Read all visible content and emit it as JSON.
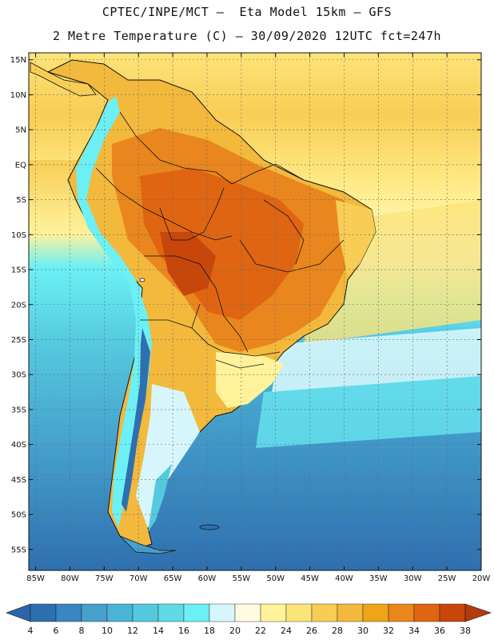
{
  "header": {
    "line1": "CPTEC/INPE/MCT –  Eta Model 15km – GFS",
    "line2": "2 Metre Temperature (C) – 30/09/2020 12UTC fct=247h"
  },
  "map": {
    "lat_labels": [
      "15N",
      "10N",
      "5N",
      "EQ",
      "5S",
      "10S",
      "15S",
      "20S",
      "25S",
      "30S",
      "35S",
      "40S",
      "45S",
      "50S",
      "55S"
    ],
    "lat_values": [
      15,
      10,
      5,
      0,
      -5,
      -10,
      -15,
      -20,
      -25,
      -30,
      -35,
      -40,
      -45,
      -50,
      -55
    ],
    "lon_labels": [
      "85W",
      "80W",
      "75W",
      "70W",
      "65W",
      "60W",
      "55W",
      "50W",
      "45W",
      "40W",
      "35W",
      "30W",
      "25W",
      "20W"
    ],
    "lon_values": [
      -85,
      -80,
      -75,
      -70,
      -65,
      -60,
      -55,
      -50,
      -45,
      -40,
      -35,
      -30,
      -25,
      -20
    ],
    "extent": {
      "lon_min": -86,
      "lon_max": -20,
      "lat_min": -58,
      "lat_max": 16
    }
  },
  "colorbar": {
    "labels": [
      "4",
      "6",
      "8",
      "10",
      "12",
      "14",
      "16",
      "18",
      "20",
      "22",
      "24",
      "26",
      "28",
      "30",
      "32",
      "34",
      "36",
      "38"
    ],
    "colors": [
      "#2e6fb0",
      "#3a86c0",
      "#45a0cc",
      "#4bb4d6",
      "#55c9de",
      "#5fdbe7",
      "#6cf0f5",
      "#d6f6fb",
      "#fffbe0",
      "#fff29a",
      "#fde47a",
      "#f8cd55",
      "#f2b93c",
      "#f0a518",
      "#e9861d",
      "#df6512",
      "#c9460b"
    ],
    "low_color": "#2a66a8",
    "high_color": "#b43a10"
  }
}
